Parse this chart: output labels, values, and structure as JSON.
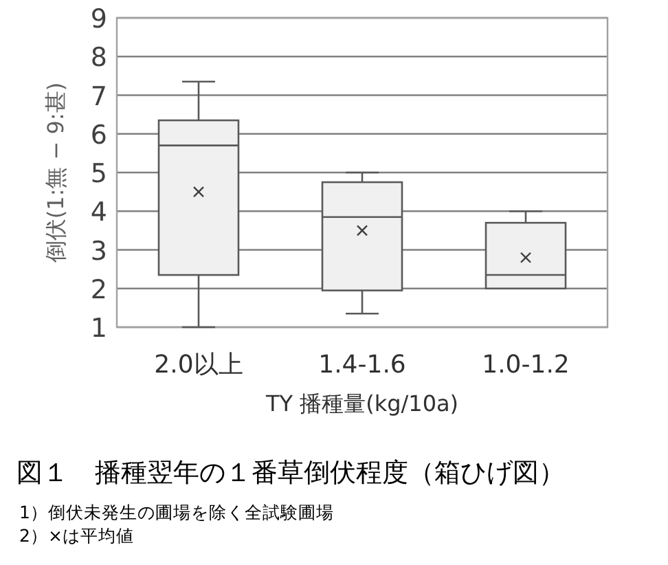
{
  "chart_data": {
    "type": "box",
    "title": "図１　播種翌年の１番草倒伏程度（箱ひげ図）",
    "annotations": [
      "1）倒伏未発生の圃場を除く全試験圃場",
      "2）×は平均値"
    ],
    "xlabel": "TY 播種量(kg/10a)",
    "ylabel": "倒伏(1:無 − 9:甚)",
    "categories": [
      "2.0以上",
      "1.4-1.6",
      "1.0-1.2"
    ],
    "series": [
      {
        "color": "#f0f0f0",
        "boxes": [
          {
            "low": 1.0,
            "q1": 2.35,
            "median": 5.7,
            "q3": 6.35,
            "high": 7.35,
            "mean": 4.5
          },
          {
            "low": 1.35,
            "q1": 1.95,
            "median": 3.85,
            "q3": 4.75,
            "high": 5.0,
            "mean": 3.5
          },
          {
            "low": 2.0,
            "q1": 2.0,
            "median": 2.35,
            "q3": 3.7,
            "high": 4.0,
            "mean": 2.8
          }
        ]
      }
    ],
    "ylim": [
      1,
      9
    ],
    "yticks": [
      1,
      2,
      3,
      4,
      5,
      6,
      7,
      8,
      9
    ],
    "grid": "y"
  }
}
